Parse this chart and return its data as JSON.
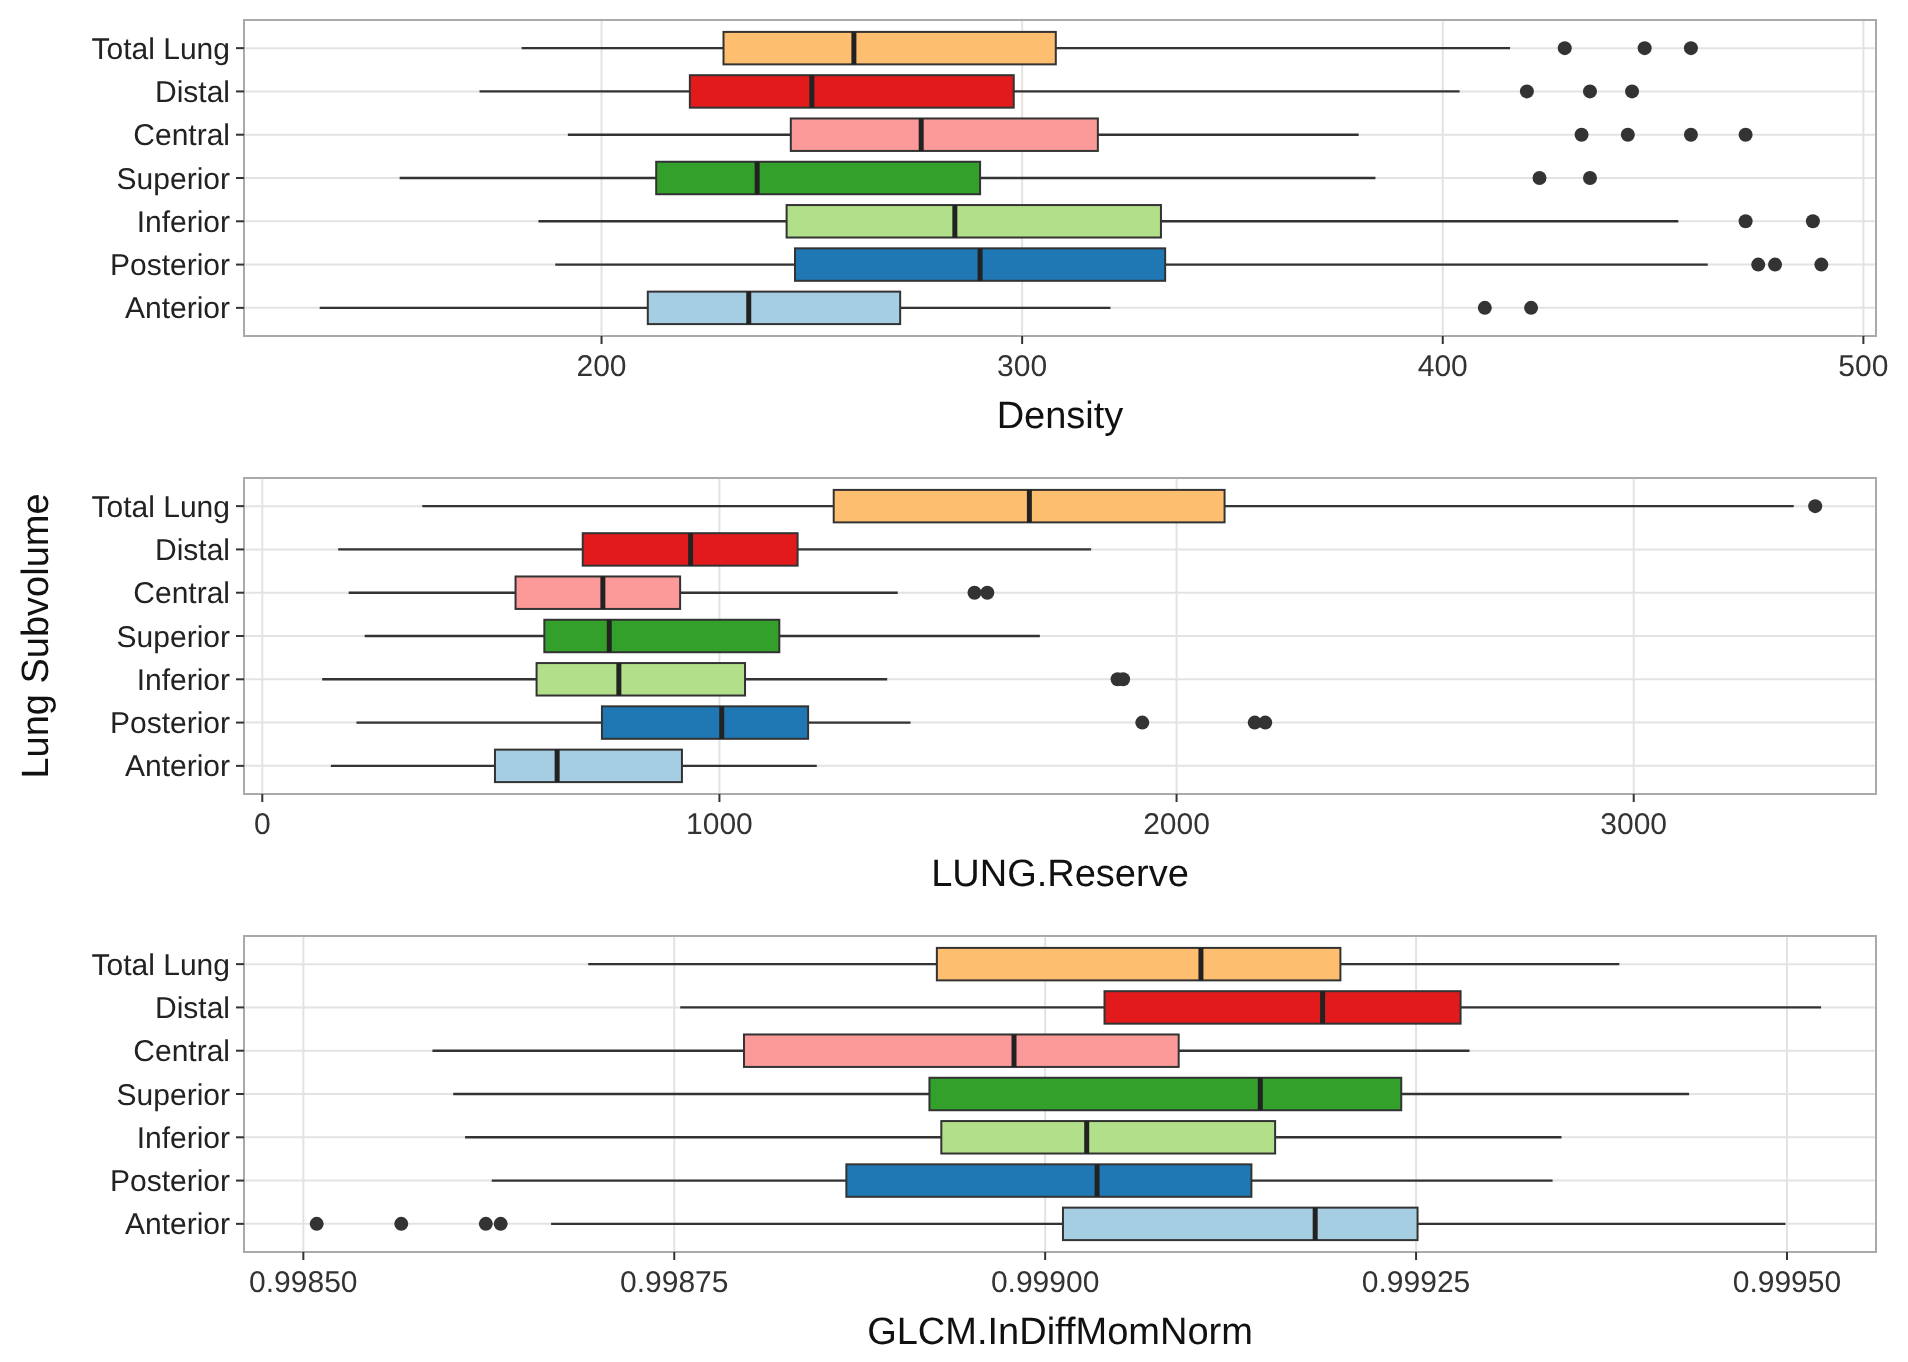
{
  "chart_data": [
    {
      "type": "box",
      "orientation": "horizontal",
      "xlabel": "Density",
      "categories": [
        "Total Lung",
        "Distal",
        "Central",
        "Superior",
        "Inferior",
        "Posterior",
        "Anterior"
      ],
      "colors": [
        "#fdbf6f",
        "#e31a1c",
        "#fb9a99",
        "#33a02c",
        "#b2df8a",
        "#1f78b4",
        "#a6cee3"
      ],
      "boxes": [
        {
          "low": 181,
          "q1": 229,
          "median": 260,
          "q3": 308,
          "high": 416,
          "outliers": [
            429,
            448,
            459
          ]
        },
        {
          "low": 171,
          "q1": 221,
          "median": 250,
          "q3": 298,
          "high": 404,
          "outliers": [
            420,
            435,
            445
          ]
        },
        {
          "low": 192,
          "q1": 245,
          "median": 276,
          "q3": 318,
          "high": 380,
          "outliers": [
            433,
            444,
            459,
            472
          ]
        },
        {
          "low": 152,
          "q1": 213,
          "median": 237,
          "q3": 290,
          "high": 384,
          "outliers": [
            423,
            435
          ]
        },
        {
          "low": 185,
          "q1": 244,
          "median": 284,
          "q3": 333,
          "high": 456,
          "outliers": [
            472,
            488
          ]
        },
        {
          "low": 189,
          "q1": 246,
          "median": 290,
          "q3": 334,
          "high": 463,
          "outliers": [
            475,
            479,
            490
          ]
        },
        {
          "low": 133,
          "q1": 211,
          "median": 235,
          "q3": 271,
          "high": 321,
          "outliers": [
            410,
            421
          ]
        }
      ],
      "xlim": [
        115,
        503
      ],
      "xticks": [
        200,
        300,
        400,
        500
      ],
      "grid": true
    },
    {
      "type": "box",
      "orientation": "horizontal",
      "xlabel": "LUNG.Reserve",
      "ylabel": "Lung Subvolume",
      "categories": [
        "Total Lung",
        "Distal",
        "Central",
        "Superior",
        "Inferior",
        "Posterior",
        "Anterior"
      ],
      "colors": [
        "#fdbf6f",
        "#e31a1c",
        "#fb9a99",
        "#33a02c",
        "#b2df8a",
        "#1f78b4",
        "#a6cee3"
      ],
      "boxes": [
        {
          "low": 350,
          "q1": 1250,
          "median": 1678,
          "q3": 2105,
          "high": 3350,
          "outliers": [
            3397
          ]
        },
        {
          "low": 166,
          "q1": 701,
          "median": 937,
          "q3": 1171,
          "high": 1813
        },
        {
          "low": 189,
          "q1": 554,
          "median": 745,
          "q3": 914,
          "high": 1390,
          "outliers": [
            1558,
            1586
          ]
        },
        {
          "low": 224,
          "q1": 617,
          "median": 759,
          "q3": 1131,
          "high": 1701
        },
        {
          "low": 131,
          "q1": 600,
          "median": 780,
          "q3": 1056,
          "high": 1367,
          "outliers": [
            1871,
            1883
          ]
        },
        {
          "low": 206,
          "q1": 743,
          "median": 1005,
          "q3": 1194,
          "high": 1418,
          "outliers": [
            1925,
            2171,
            2194
          ]
        },
        {
          "low": 150,
          "q1": 509,
          "median": 645,
          "q3": 918,
          "high": 1213
        }
      ],
      "xlim": [
        -40,
        3530
      ],
      "xticks": [
        0,
        1000,
        2000,
        3000
      ],
      "grid": true
    },
    {
      "type": "box",
      "orientation": "horizontal",
      "xlabel": "GLCM.InDiffMomNorm",
      "categories": [
        "Total Lung",
        "Distal",
        "Central",
        "Superior",
        "Inferior",
        "Posterior",
        "Anterior"
      ],
      "colors": [
        "#fdbf6f",
        "#e31a1c",
        "#fb9a99",
        "#33a02c",
        "#b2df8a",
        "#1f78b4",
        "#a6cee3"
      ],
      "boxes": [
        {
          "low": 0.998692,
          "q1": 0.998927,
          "median": 0.999105,
          "q3": 0.999199,
          "high": 0.999387
        },
        {
          "low": 0.998754,
          "q1": 0.99904,
          "median": 0.999187,
          "q3": 0.99928,
          "high": 0.999523
        },
        {
          "low": 0.998587,
          "q1": 0.998797,
          "median": 0.998979,
          "q3": 0.99909,
          "high": 0.999286
        },
        {
          "low": 0.998601,
          "q1": 0.998922,
          "median": 0.999145,
          "q3": 0.99924,
          "high": 0.999434
        },
        {
          "low": 0.998609,
          "q1": 0.99893,
          "median": 0.999028,
          "q3": 0.999155,
          "high": 0.999348
        },
        {
          "low": 0.998627,
          "q1": 0.998866,
          "median": 0.999035,
          "q3": 0.999139,
          "high": 0.999342
        },
        {
          "low": 0.998667,
          "q1": 0.999012,
          "median": 0.999182,
          "q3": 0.999251,
          "high": 0.999499,
          "outliers": [
            0.998509,
            0.998566,
            0.998623,
            0.998633
          ]
        }
      ],
      "xlim": [
        0.99846,
        0.99956
      ],
      "xticks": [
        {
          "value": 0.9985,
          "label": "0.99850"
        },
        {
          "value": 0.99875,
          "label": "0.99875"
        },
        {
          "value": 0.999,
          "label": "0.99900"
        },
        {
          "value": 0.99925,
          "label": "0.99925"
        },
        {
          "value": 0.9995,
          "label": "0.99950"
        }
      ],
      "grid": true
    }
  ]
}
